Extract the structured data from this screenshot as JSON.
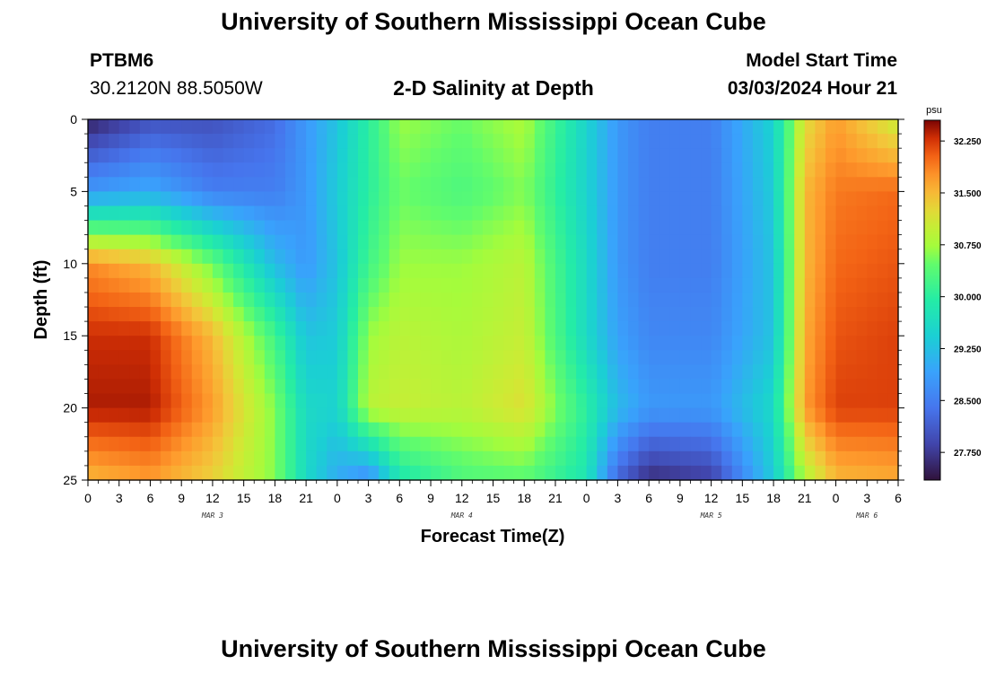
{
  "header": {
    "title": "University of Southern Mississippi Ocean Cube",
    "station_id": "PTBM6",
    "station_coords": "30.2120N  88.5050W",
    "subtitle": "2-D Salinity at Depth",
    "model_start_label": "Model Start Time",
    "model_start_value": "03/03/2024 Hour 21"
  },
  "footer": {
    "title": "University of Southern Mississippi Ocean Cube"
  },
  "chart_data": {
    "type": "heatmap",
    "title": "2-D Salinity at Depth",
    "xlabel": "Forecast Time(Z)",
    "ylabel": "Depth (ft)",
    "x_tick_labels": [
      "0",
      "3",
      "6",
      "9",
      "12",
      "15",
      "18",
      "21",
      "0",
      "3",
      "6",
      "9",
      "12",
      "15",
      "18",
      "21",
      "0",
      "3",
      "6",
      "9",
      "12",
      "15",
      "18",
      "21",
      "0",
      "3",
      "6"
    ],
    "x_range_hours": [
      0,
      78
    ],
    "day_labels": [
      {
        "label": "MAR 3",
        "hour": 12
      },
      {
        "label": "MAR 4",
        "hour": 36
      },
      {
        "label": "MAR 5",
        "hour": 60
      },
      {
        "label": "MAR 6",
        "hour": 75
      }
    ],
    "y_ticks": [
      0,
      5,
      10,
      15,
      20,
      25
    ],
    "y_range_ft": [
      0,
      25
    ],
    "y_inverted": true,
    "colorbar": {
      "unit": "psu",
      "ticks": [
        "32.250",
        "31.500",
        "30.750",
        "30.000",
        "29.250",
        "28.500",
        "27.750"
      ],
      "range": [
        27.35,
        32.55
      ]
    },
    "values_grid": {
      "x_hours": [
        0,
        6,
        12,
        18,
        21,
        24,
        27,
        30,
        36,
        42,
        48,
        51,
        54,
        60,
        66,
        69,
        72,
        78
      ],
      "depth_ft": [
        0,
        5,
        10,
        15,
        20,
        25
      ],
      "psu": [
        [
          27.5,
          28.0,
          28.0,
          28.3,
          28.8,
          29.3,
          30.0,
          30.7,
          30.5,
          30.8,
          29.5,
          28.8,
          28.5,
          28.5,
          29.5,
          31.2,
          31.7,
          31.0
        ],
        [
          28.8,
          29.0,
          28.5,
          28.5,
          28.8,
          29.4,
          30.0,
          30.5,
          30.3,
          30.6,
          29.5,
          28.8,
          28.5,
          28.5,
          29.4,
          31.5,
          31.9,
          32.0
        ],
        [
          31.8,
          31.5,
          30.5,
          29.2,
          28.8,
          29.3,
          30.2,
          30.7,
          30.7,
          30.9,
          29.6,
          28.8,
          28.5,
          28.5,
          29.3,
          31.5,
          32.0,
          32.1
        ],
        [
          32.3,
          32.3,
          31.5,
          30.2,
          29.3,
          29.4,
          30.7,
          30.9,
          30.8,
          31.0,
          29.6,
          28.9,
          28.6,
          28.6,
          29.3,
          31.6,
          32.1,
          32.2
        ],
        [
          32.4,
          32.4,
          31.7,
          30.6,
          29.6,
          29.5,
          30.9,
          31.0,
          30.9,
          31.2,
          30.0,
          29.2,
          28.8,
          28.8,
          29.6,
          31.7,
          32.2,
          32.2
        ],
        [
          31.5,
          31.7,
          31.3,
          30.6,
          29.6,
          29.0,
          28.6,
          29.8,
          30.3,
          30.4,
          29.8,
          28.2,
          27.6,
          27.8,
          29.4,
          30.8,
          31.5,
          31.6
        ]
      ]
    },
    "legend": "colorbar-right",
    "grid": false
  }
}
